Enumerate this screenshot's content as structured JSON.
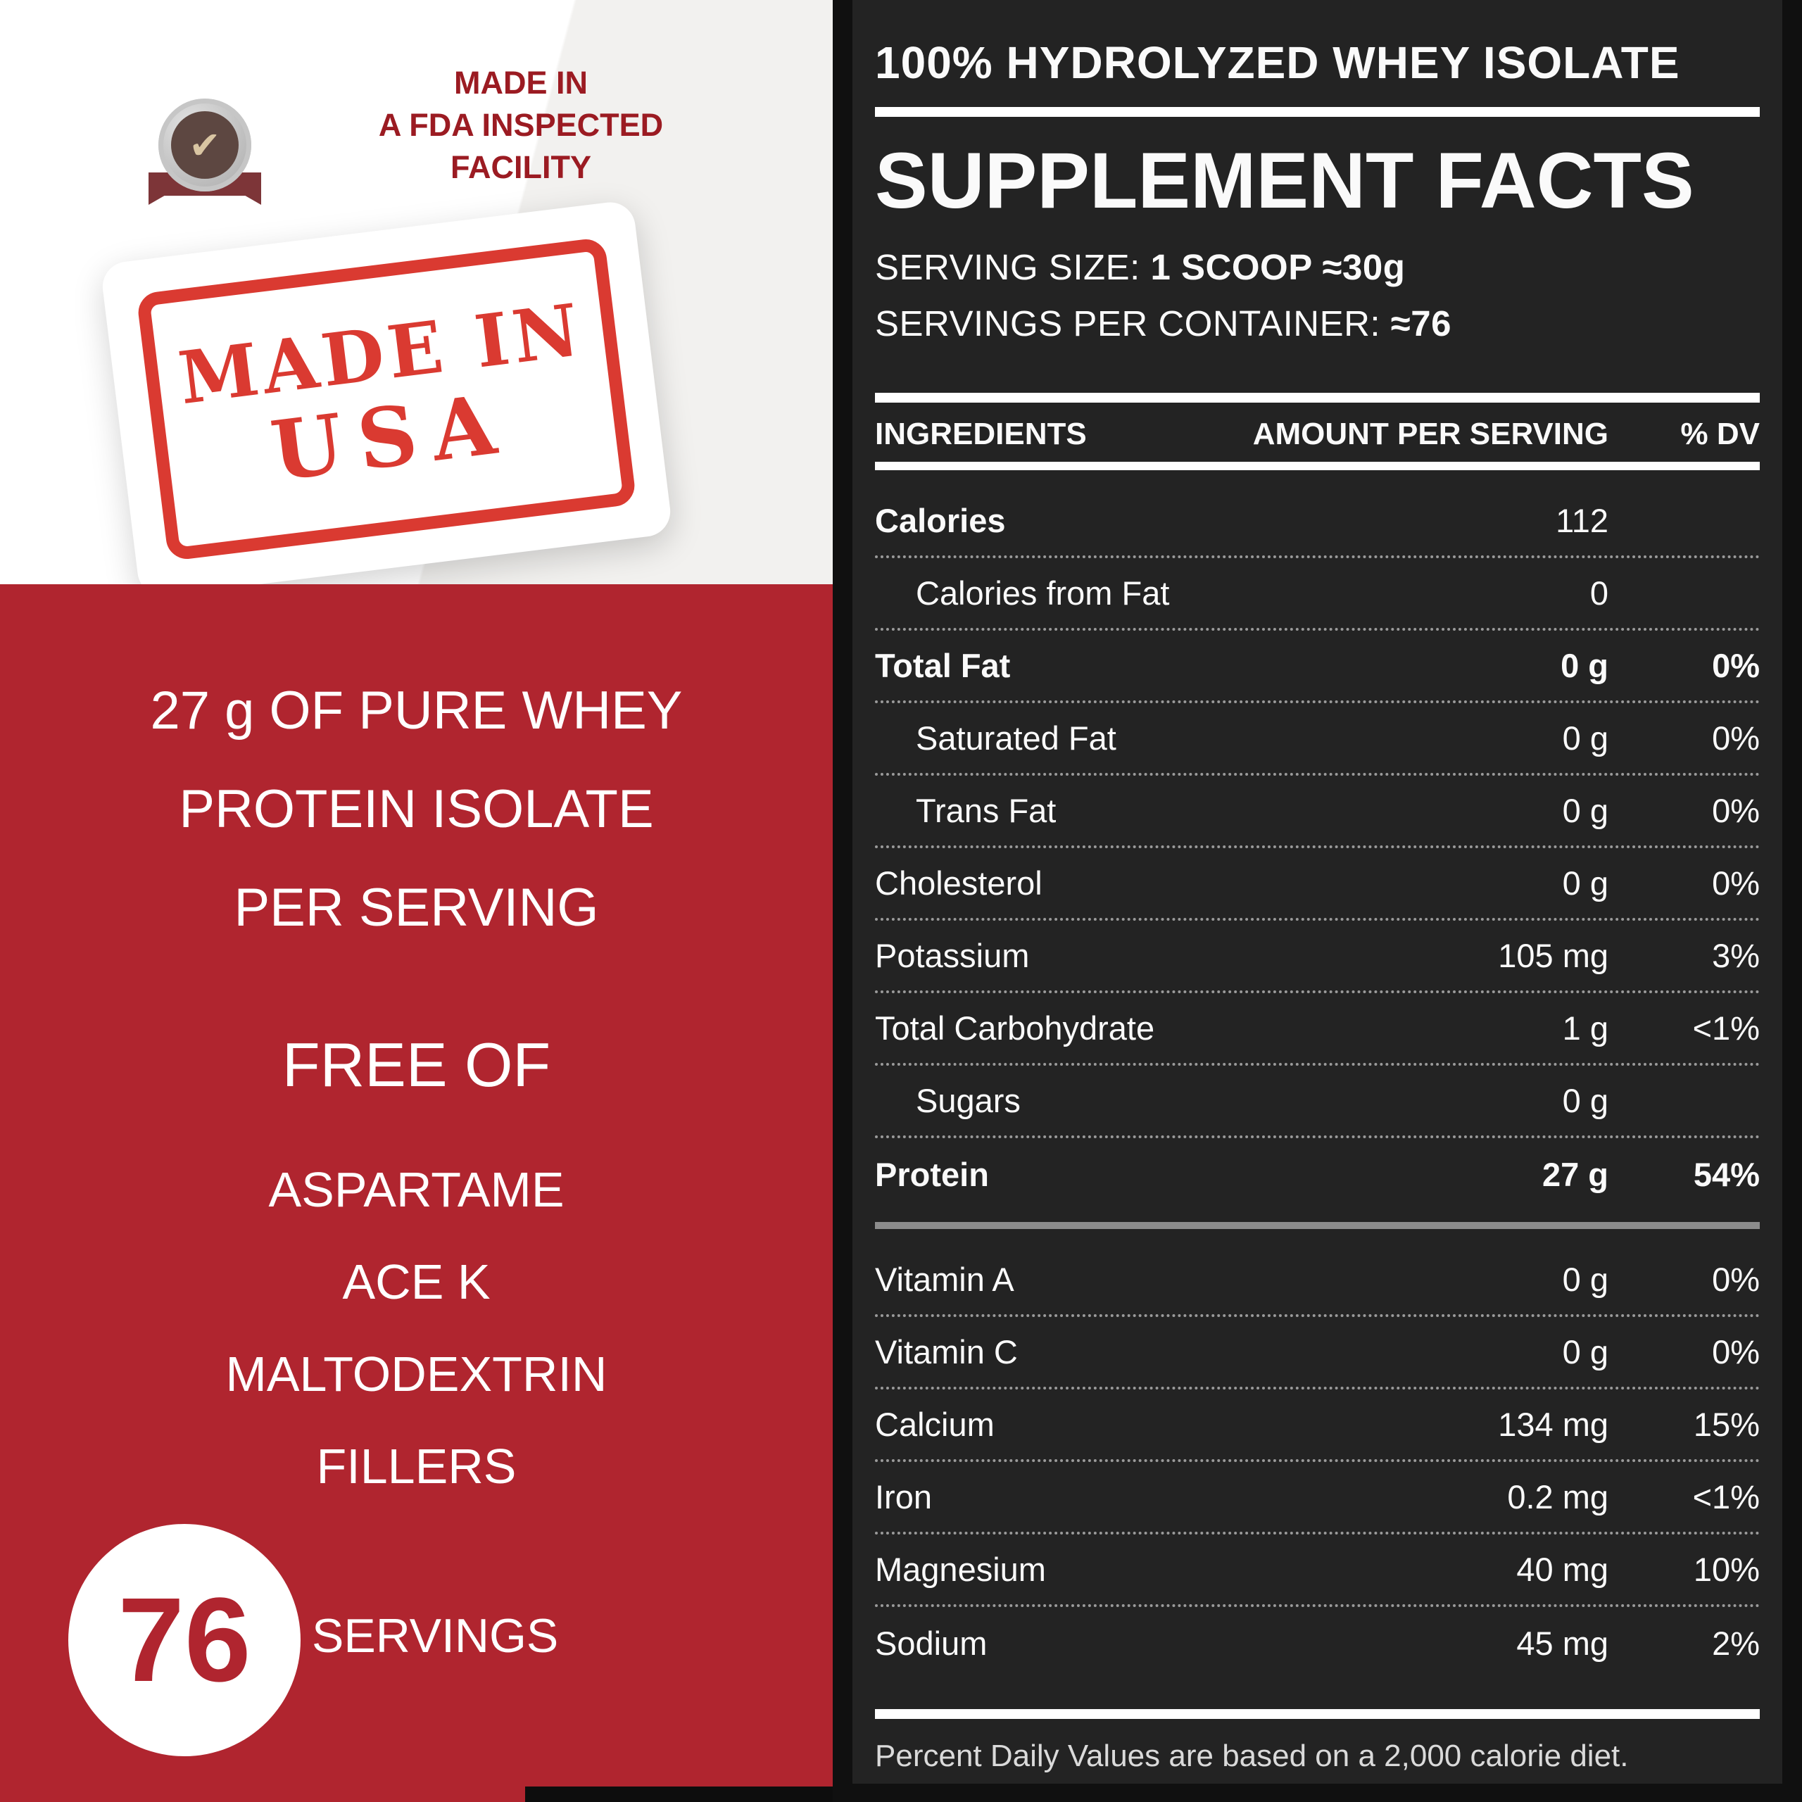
{
  "left": {
    "badge": {
      "lines": [
        "MADE IN",
        "A FDA INSPECTED",
        "FACILITY"
      ]
    },
    "stamp": {
      "line1": "MADE IN",
      "line2": "USA"
    },
    "claims": {
      "protein_lines": [
        "27 g OF PURE WHEY",
        "PROTEIN ISOLATE",
        "PER SERVING"
      ],
      "free_of_title": "FREE OF",
      "free_of_items": [
        "ASPARTAME",
        "ACE K",
        "MALTODEXTRIN",
        "FILLERS"
      ],
      "servings_count": "76",
      "servings_label": "SERVINGS"
    }
  },
  "panel": {
    "title": "100% HYDROLYZED WHEY ISOLATE",
    "heading": "SUPPLEMENT FACTS",
    "serving_size_label": "SERVING SIZE:",
    "serving_size_value": "1 SCOOP ≈30g",
    "servings_per_container_label": "SERVINGS PER CONTAINER:",
    "servings_per_container_value": "≈76",
    "col_ingredients": "INGREDIENTS",
    "col_amount": "AMOUNT PER SERVING",
    "col_dv": "% DV",
    "rows": [
      {
        "name": "Calories",
        "amount": "112",
        "dv": ""
      },
      {
        "name": "Calories from Fat",
        "amount": "0",
        "dv": ""
      },
      {
        "name": "Total Fat",
        "amount": "0 g",
        "dv": "0%"
      },
      {
        "name": "Saturated Fat",
        "amount": "0 g",
        "dv": "0%"
      },
      {
        "name": "Trans Fat",
        "amount": "0 g",
        "dv": "0%"
      },
      {
        "name": "Cholesterol",
        "amount": "0 g",
        "dv": "0%"
      },
      {
        "name": "Potassium",
        "amount": "105 mg",
        "dv": "3%"
      },
      {
        "name": "Total Carbohydrate",
        "amount": "1 g",
        "dv": "<1%"
      },
      {
        "name": "Sugars",
        "amount": "0 g",
        "dv": ""
      },
      {
        "name": "Protein",
        "amount": "27 g",
        "dv": "54%"
      }
    ],
    "vitamins": [
      {
        "name": "Vitamin A",
        "amount": "0 g",
        "dv": "0%"
      },
      {
        "name": "Vitamin C",
        "amount": "0 g",
        "dv": "0%"
      },
      {
        "name": "Calcium",
        "amount": "134 mg",
        "dv": "15%"
      },
      {
        "name": "Iron",
        "amount": "0.2 mg",
        "dv": "<1%"
      },
      {
        "name": "Magnesium",
        "amount": "40 mg",
        "dv": "10%"
      },
      {
        "name": "Sodium",
        "amount": "45 mg",
        "dv": "2%"
      }
    ],
    "footnote": "Percent Daily Values are based on a 2,000 calorie diet."
  },
  "colors": {
    "red_background": "#b0252f",
    "stamp_red": "#da3a31",
    "badge_text_red": "#9b1b22",
    "panel_background": "#232323",
    "text_white": "#ffffff"
  },
  "icons": {
    "badge": "medal-icon",
    "badge_check": "✔"
  }
}
